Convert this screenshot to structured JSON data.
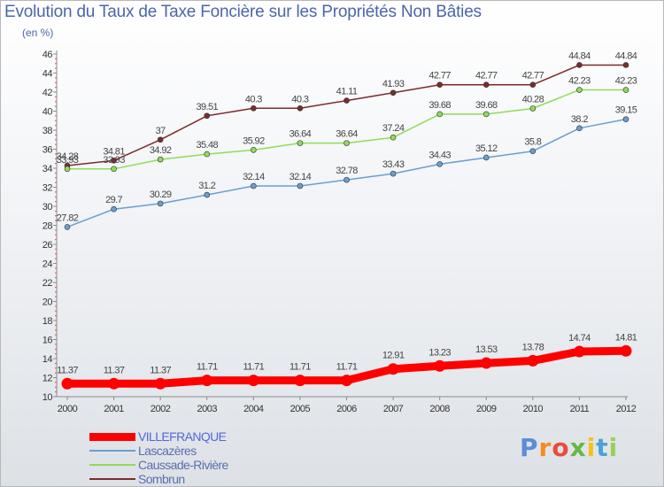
{
  "title": "Evolution du Taux de Taxe Foncière sur les Propriétés Non Bâties",
  "unit": "(en %)",
  "logo": {
    "text": "Proxiti",
    "letter_colors": [
      "#5b8ed6",
      "#f28c1e",
      "#e94b3c",
      "#66b843",
      "#f5c316",
      "#4aa3d8",
      "#9bcf58"
    ]
  },
  "chart_data": {
    "type": "line",
    "title": "Evolution du Taux de Taxe Foncière sur les Propriétés Non Bâties",
    "ylabel": "(en %)",
    "xlabel": "",
    "x": [
      "2000",
      "2001",
      "2002",
      "2003",
      "2004",
      "2005",
      "2006",
      "2007",
      "2008",
      "2009",
      "2010",
      "2011",
      "2012"
    ],
    "ylim": [
      10,
      46
    ],
    "yticks": [
      10,
      12,
      14,
      16,
      18,
      20,
      22,
      24,
      26,
      28,
      30,
      32,
      34,
      36,
      38,
      40,
      42,
      44,
      46
    ],
    "grid": false,
    "legend_position": "bottom-left",
    "series": [
      {
        "name": "VILLEFRANQUE",
        "color": "#ff0000",
        "emphasis": true,
        "values": [
          11.37,
          11.37,
          11.37,
          11.71,
          11.71,
          11.71,
          11.71,
          12.91,
          13.23,
          13.53,
          13.78,
          14.74,
          14.81
        ],
        "labels": [
          "11.37",
          "11.37",
          "11.37",
          "11.71",
          "11.71",
          "11.71",
          "11.71",
          "12.91",
          "13.23",
          "13.53",
          "13.78",
          "14.74",
          "14.81"
        ]
      },
      {
        "name": "Lascazères",
        "color": "#6a9fd0",
        "emphasis": false,
        "values": [
          27.82,
          29.7,
          30.29,
          31.2,
          32.14,
          32.14,
          32.78,
          33.43,
          34.43,
          35.12,
          35.8,
          38.2,
          39.15
        ],
        "labels": [
          "27.82",
          "29.7",
          "30.29",
          "31.2",
          "32.14",
          "32.14",
          "32.78",
          "33.43",
          "34.43",
          "35.12",
          "35.8",
          "38.2",
          "39.15"
        ]
      },
      {
        "name": "Caussade-Rivière",
        "color": "#8fdc5a",
        "emphasis": false,
        "values": [
          33.93,
          33.93,
          34.92,
          35.48,
          35.92,
          36.64,
          36.64,
          37.24,
          39.68,
          39.68,
          40.28,
          42.23,
          42.23
        ],
        "labels": [
          "33.93",
          "33.93",
          "34.92",
          "35.48",
          "35.92",
          "36.64",
          "36.64",
          "37.24",
          "39.68",
          "39.68",
          "40.28",
          "42.23",
          "42.23"
        ]
      },
      {
        "name": "Sombrun",
        "color": "#7b2c2c",
        "emphasis": false,
        "values": [
          34.28,
          34.81,
          37,
          39.51,
          40.3,
          40.3,
          41.11,
          41.93,
          42.77,
          42.77,
          42.77,
          44.84,
          44.84
        ],
        "labels": [
          "34.28",
          "34.81",
          "37",
          "39.51",
          "40.3",
          "40.3",
          "41.11",
          "41.93",
          "42.77",
          "42.77",
          "42.77",
          "44.84",
          "44.84"
        ]
      }
    ]
  }
}
